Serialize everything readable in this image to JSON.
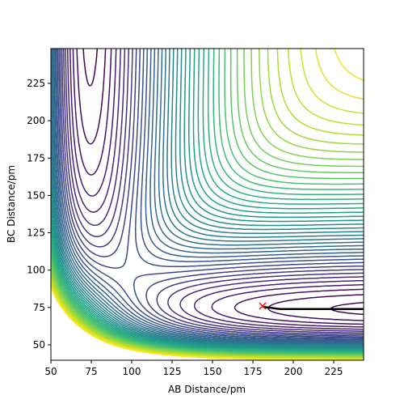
{
  "chart_data": {
    "type": "contour",
    "xlabel": "AB Distance/pm",
    "ylabel": "BC Distance/pm",
    "xlim": [
      50,
      243.5
    ],
    "ylim": [
      39.7,
      248.3
    ],
    "xticks": [
      50,
      75,
      100,
      125,
      150,
      175,
      200,
      225
    ],
    "yticks": [
      50,
      75,
      100,
      125,
      150,
      175,
      200,
      225
    ],
    "colormap": "viridis",
    "series": [
      {
        "color": "#000000",
        "x": [
          181,
          183,
          186,
          189,
          192,
          196,
          200,
          205,
          210,
          215,
          220,
          225,
          230,
          235,
          240,
          243.5
        ],
        "y": [
          75.5,
          75.2,
          74.8,
          74.3,
          74,
          74,
          74,
          74,
          74,
          74,
          74,
          74,
          74,
          74,
          74,
          74
        ]
      }
    ],
    "start_point": {
      "x": 181,
      "y": 76,
      "color": "#ff0000"
    }
  }
}
